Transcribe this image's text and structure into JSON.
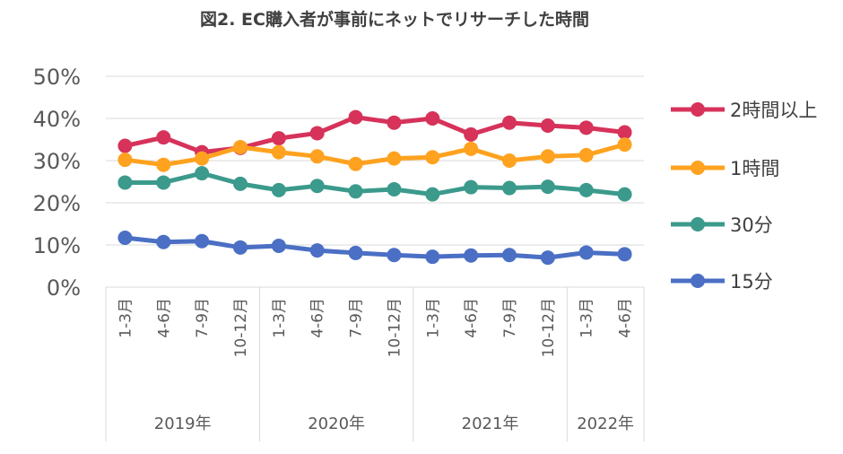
{
  "chart_data": {
    "type": "line",
    "title": "図2. EC購入者が事前にネットでリサーチした時間",
    "categories": [
      "1-3月",
      "4-6月",
      "7-9月",
      "10-12月",
      "1-3月",
      "4-6月",
      "7-9月",
      "10-12月",
      "1-3月",
      "4-6月",
      "7-9月",
      "10-12月",
      "1-3月",
      "4-6月"
    ],
    "years": [
      {
        "label": "2019年",
        "count": 4
      },
      {
        "label": "2020年",
        "count": 4
      },
      {
        "label": "2021年",
        "count": 4
      },
      {
        "label": "2022年",
        "count": 2
      }
    ],
    "y_ticks": [
      "0%",
      "10%",
      "20%",
      "30%",
      "40%",
      "50%"
    ],
    "ylim": [
      0,
      50
    ],
    "grid": true,
    "legend_position": "right",
    "series": [
      {
        "name": "2時間以上",
        "color": "#d6325a",
        "values": [
          33.5,
          35.5,
          32.0,
          33.0,
          35.3,
          36.5,
          40.3,
          39.0,
          40.0,
          36.2,
          39.0,
          38.3,
          37.8,
          36.7
        ]
      },
      {
        "name": "1時間",
        "color": "#ffa21f",
        "values": [
          30.2,
          29.0,
          30.5,
          33.2,
          32.0,
          31.0,
          29.2,
          30.5,
          30.8,
          32.8,
          30.0,
          31.0,
          31.3,
          33.8
        ]
      },
      {
        "name": "30分",
        "color": "#3b9a8c",
        "values": [
          24.8,
          24.8,
          27.0,
          24.5,
          23.0,
          24.0,
          22.7,
          23.2,
          22.0,
          23.7,
          23.5,
          23.8,
          23.0,
          22.0
        ]
      },
      {
        "name": "15分",
        "color": "#4a6fc4",
        "values": [
          11.7,
          10.7,
          10.9,
          9.4,
          9.8,
          8.7,
          8.1,
          7.6,
          7.2,
          7.5,
          7.6,
          7.0,
          8.2,
          7.8
        ]
      }
    ]
  }
}
